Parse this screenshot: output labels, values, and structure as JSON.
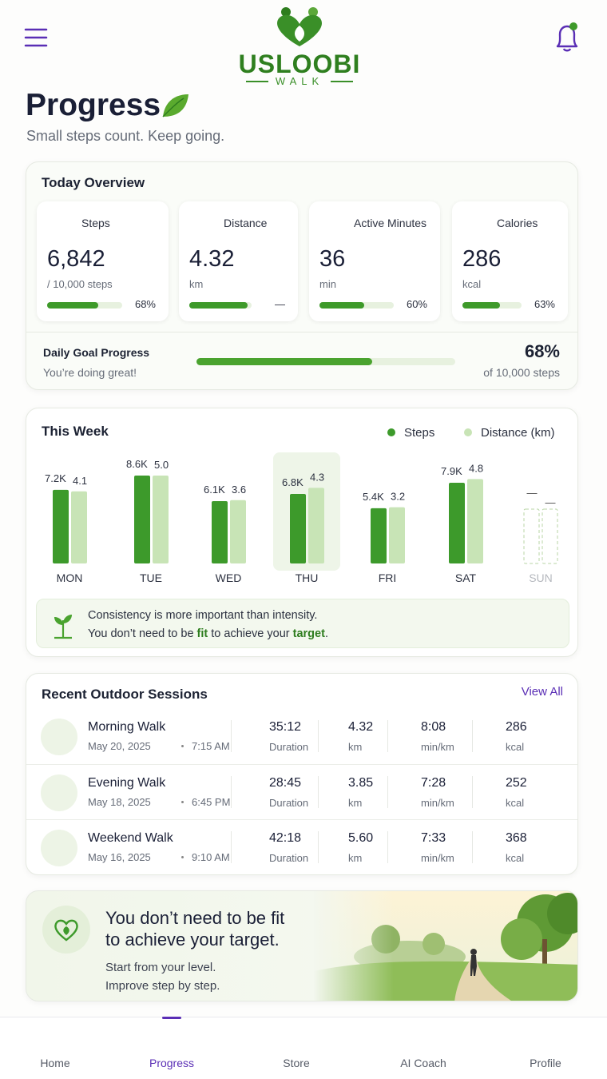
{
  "header": {
    "logo": "USLOOBI",
    "logo_sub": "WALK"
  },
  "page": {
    "title": "Progress",
    "subtitle": "Small steps count. Keep going."
  },
  "today": {
    "title": "Today Overview",
    "cards": [
      {
        "label": "Steps",
        "value": "6,842",
        "unit": "/ 10,000 steps",
        "progress": 68,
        "progress_label": "68%"
      },
      {
        "label": "Distance",
        "value": "4.32",
        "unit": "km",
        "progress": 93,
        "progress_label": "—"
      },
      {
        "label": "Active Minutes",
        "value": "36",
        "unit": "min",
        "progress": 60,
        "progress_label": "60%"
      },
      {
        "label": "Calories",
        "value": "286",
        "unit": "kcal",
        "progress": 63,
        "progress_label": "63%"
      }
    ]
  },
  "goal": {
    "title": "Daily Goal Progress",
    "note": "You’re doing great!",
    "progress": 68,
    "progress_label": "68%",
    "caption": "of 10,000 steps"
  },
  "week": {
    "title": "This Week",
    "categories": [
      "MON",
      "TUE",
      "WED",
      "THU",
      "FRI",
      "SAT",
      "SUN"
    ],
    "highlight": 3,
    "series": [
      {
        "name": "Steps",
        "color": "#3d9a2b",
        "values": [
          7200,
          8600,
          6100,
          6800,
          5400,
          7900,
          null
        ],
        "value_labels": [
          "7.2K",
          "8.6K",
          "6.1K",
          "6.8K",
          "5.4K",
          "7.9K",
          "—"
        ]
      },
      {
        "name": "Distance (km)",
        "color": "#c8e4b6",
        "values": [
          4.1,
          5.0,
          3.6,
          4.3,
          3.2,
          4.8,
          null
        ],
        "value_labels": [
          "4.1",
          "5.0",
          "3.6",
          "4.3",
          "3.2",
          "4.8",
          "—"
        ]
      }
    ]
  },
  "tip": {
    "line1": "Consistency is more important than intensity.",
    "line2": [
      "You don’t need to be ",
      "fit",
      " to achieve your ",
      "target",
      "."
    ]
  },
  "sessions": {
    "title": "Recent Outdoor Sessions",
    "view_all": "View All",
    "rows": [
      {
        "name": "Morning Walk",
        "date": "May 20, 2025",
        "time": "7:15 AM",
        "duration": "35:12",
        "duration_label": "Duration",
        "distance": "4.32",
        "distance_label": "km",
        "pace": "8:08",
        "pace_label": "min/km",
        "calories": "286",
        "calories_label": "kcal"
      },
      {
        "name": "Evening Walk",
        "date": "May 18, 2025",
        "time": "6:45 PM",
        "duration": "28:45",
        "duration_label": "Duration",
        "distance": "3.85",
        "distance_label": "km",
        "pace": "7:28",
        "pace_label": "min/km",
        "calories": "252",
        "calories_label": "kcal"
      },
      {
        "name": "Weekend Walk",
        "date": "May 16, 2025",
        "time": "9:10 AM",
        "duration": "42:18",
        "duration_label": "Duration",
        "distance": "5.60",
        "distance_label": "km",
        "pace": "7:33",
        "pace_label": "min/km",
        "calories": "368",
        "calories_label": "kcal"
      }
    ]
  },
  "banner": {
    "title_lines": [
      "You don’t need to be fit",
      "to achieve your target."
    ],
    "lines": [
      "Start from your level.",
      "Improve step by step."
    ]
  },
  "nav": {
    "items": [
      "Home",
      "Progress",
      "Store",
      "AI Coach",
      "Profile"
    ],
    "active": 1
  }
}
